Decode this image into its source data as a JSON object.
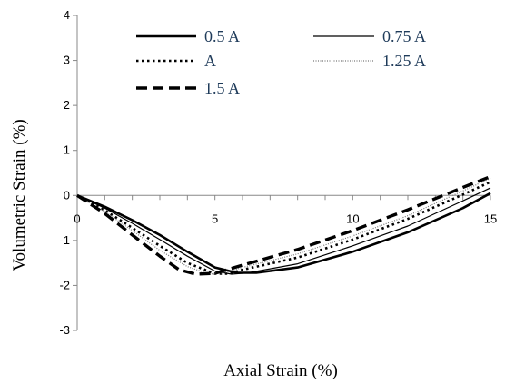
{
  "chart_data": {
    "type": "line",
    "xlabel": "Axial Strain (%)",
    "ylabel": "Volumetric Strain (%)",
    "xlim": [
      0,
      15
    ],
    "ylim": [
      -3,
      4
    ],
    "x_ticks": [
      "0",
      "5",
      "10",
      "15"
    ],
    "y_ticks": [
      "-3",
      "-2",
      "-1",
      "0",
      "1",
      "2",
      "3",
      "4"
    ],
    "grid": false,
    "legend_position": "top",
    "series": [
      {
        "name": "0.5 A",
        "style": "solid-thick",
        "points": [
          [
            0,
            0
          ],
          [
            1,
            -0.25
          ],
          [
            2,
            -0.55
          ],
          [
            3,
            -0.88
          ],
          [
            4,
            -1.25
          ],
          [
            5,
            -1.6
          ],
          [
            5.8,
            -1.72
          ],
          [
            6.5,
            -1.72
          ],
          [
            8,
            -1.6
          ],
          [
            10,
            -1.25
          ],
          [
            12,
            -0.82
          ],
          [
            14,
            -0.28
          ],
          [
            15,
            0.05
          ]
        ]
      },
      {
        "name": "0.75 A",
        "style": "solid-thin",
        "points": [
          [
            0,
            0
          ],
          [
            1,
            -0.28
          ],
          [
            2,
            -0.62
          ],
          [
            3,
            -0.98
          ],
          [
            4,
            -1.35
          ],
          [
            5,
            -1.68
          ],
          [
            5.6,
            -1.75
          ],
          [
            6.2,
            -1.72
          ],
          [
            8,
            -1.52
          ],
          [
            10,
            -1.12
          ],
          [
            12,
            -0.68
          ],
          [
            14,
            -0.12
          ],
          [
            15,
            0.17
          ]
        ]
      },
      {
        "name": "A",
        "style": "dotted",
        "points": [
          [
            0,
            0
          ],
          [
            1,
            -0.33
          ],
          [
            2,
            -0.72
          ],
          [
            3,
            -1.12
          ],
          [
            4,
            -1.5
          ],
          [
            5,
            -1.74
          ],
          [
            5.5,
            -1.74
          ],
          [
            6,
            -1.65
          ],
          [
            8,
            -1.38
          ],
          [
            10,
            -0.98
          ],
          [
            12,
            -0.52
          ],
          [
            14,
            0.02
          ],
          [
            15,
            0.3
          ]
        ]
      },
      {
        "name": "1.25 A",
        "style": "fine-dotted",
        "points": [
          [
            0,
            0
          ],
          [
            1,
            -0.36
          ],
          [
            2,
            -0.78
          ],
          [
            3,
            -1.22
          ],
          [
            4,
            -1.58
          ],
          [
            4.8,
            -1.75
          ],
          [
            5.3,
            -1.72
          ],
          [
            6,
            -1.6
          ],
          [
            8,
            -1.3
          ],
          [
            10,
            -0.9
          ],
          [
            12,
            -0.45
          ],
          [
            14,
            0.1
          ],
          [
            15,
            0.38
          ]
        ]
      },
      {
        "name": "1.5 A",
        "style": "dashed-thick",
        "points": [
          [
            0,
            0
          ],
          [
            1,
            -0.4
          ],
          [
            2,
            -0.88
          ],
          [
            3,
            -1.35
          ],
          [
            3.7,
            -1.65
          ],
          [
            4.3,
            -1.75
          ],
          [
            5,
            -1.73
          ],
          [
            6,
            -1.55
          ],
          [
            8,
            -1.2
          ],
          [
            10,
            -0.78
          ],
          [
            12,
            -0.32
          ],
          [
            14,
            0.18
          ],
          [
            15,
            0.42
          ]
        ]
      }
    ]
  }
}
